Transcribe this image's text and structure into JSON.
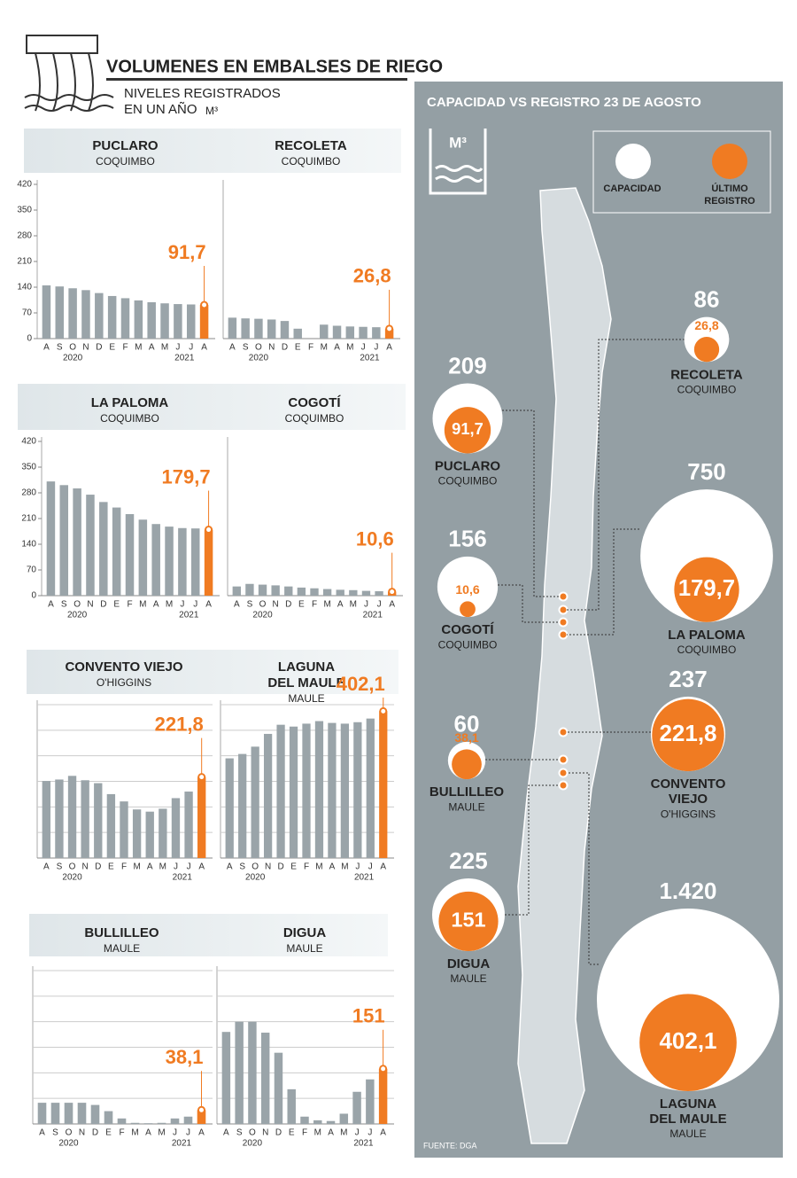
{
  "header": {
    "title": "VOLUMENES EN EMBALSES DE RIEGO",
    "subtitle": [
      "NIVELES REGISTRADOS",
      "EN UN AÑO"
    ],
    "unit": "M³"
  },
  "chart_data": [
    {
      "type": "bar",
      "title": "PUCLARO",
      "subtitle": "COQUIMBO",
      "categories": [
        "A",
        "S",
        "O",
        "N",
        "D",
        "E",
        "F",
        "M",
        "A",
        "M",
        "J",
        "J",
        "A"
      ],
      "years": [
        "2020",
        "2021"
      ],
      "values": [
        145,
        142,
        137,
        132,
        124,
        116,
        110,
        104,
        99,
        96,
        94,
        93,
        91.7
      ],
      "value_labels": [
        null,
        null,
        null,
        null,
        null,
        null,
        null,
        null,
        null,
        null,
        null,
        null,
        "91,7"
      ],
      "color": "#9aa4a9",
      "highlight_color": "#f07b22",
      "ylim": [
        0,
        420
      ],
      "yticks": [
        0,
        70,
        140,
        210,
        280,
        350,
        420
      ],
      "grid": false
    },
    {
      "type": "bar",
      "title": "RECOLETA",
      "subtitle": "COQUIMBO",
      "categories": [
        "A",
        "S",
        "O",
        "N",
        "D",
        "E",
        "F",
        "M",
        "A",
        "M",
        "J",
        "J",
        "A"
      ],
      "years": [
        "2020",
        "2021"
      ],
      "values": [
        57,
        55,
        54,
        52,
        48,
        27,
        null,
        38,
        35,
        33,
        32,
        31,
        26.8
      ],
      "value_labels": [
        null,
        null,
        null,
        null,
        null,
        null,
        null,
        null,
        null,
        null,
        null,
        null,
        "26,8"
      ],
      "color": "#9aa4a9",
      "highlight_color": "#f07b22",
      "ylim": [
        0,
        420
      ],
      "grid": false
    },
    {
      "type": "bar",
      "title": "LA PALOMA",
      "subtitle": "COQUIMBO",
      "categories": [
        "A",
        "S",
        "O",
        "N",
        "D",
        "E",
        "F",
        "M",
        "A",
        "M",
        "J",
        "J",
        "A"
      ],
      "years": [
        "2020",
        "2021"
      ],
      "values": [
        311,
        301,
        292,
        275,
        255,
        240,
        222,
        207,
        195,
        188,
        184,
        183,
        179.7
      ],
      "value_labels": [
        null,
        null,
        null,
        null,
        null,
        null,
        null,
        null,
        null,
        null,
        null,
        null,
        "179,7"
      ],
      "color": "#9aa4a9",
      "highlight_color": "#f07b22",
      "ylim": [
        0,
        420
      ],
      "yticks": [
        0,
        70,
        140,
        210,
        280,
        350,
        420
      ],
      "grid": false
    },
    {
      "type": "bar",
      "title": "COGOTÍ",
      "subtitle": "COQUIMBO",
      "categories": [
        "A",
        "S",
        "O",
        "N",
        "D",
        "E",
        "F",
        "M",
        "A",
        "M",
        "J",
        "J",
        "A"
      ],
      "years": [
        "2020",
        "2021"
      ],
      "values": [
        25,
        32,
        30,
        28,
        25,
        22,
        20,
        18,
        16,
        15,
        13,
        12,
        10.6
      ],
      "value_labels": [
        null,
        null,
        null,
        null,
        null,
        null,
        null,
        null,
        null,
        null,
        null,
        null,
        "10,6"
      ],
      "color": "#9aa4a9",
      "highlight_color": "#f07b22",
      "ylim": [
        0,
        420
      ],
      "grid": false
    },
    {
      "type": "bar",
      "title": "CONVENTO VIEJO",
      "subtitle": "O'HIGGINS",
      "categories": [
        "A",
        "S",
        "O",
        "N",
        "D",
        "E",
        "F",
        "M",
        "A",
        "M",
        "J",
        "J",
        "A"
      ],
      "years": [
        "2020",
        "2021"
      ],
      "values": [
        211,
        215,
        225,
        213,
        205,
        175,
        155,
        133,
        127,
        135,
        164,
        182,
        221.8
      ],
      "value_labels": [
        null,
        null,
        null,
        null,
        null,
        null,
        null,
        null,
        null,
        null,
        null,
        null,
        "221,8"
      ],
      "color": "#9aa4a9",
      "highlight_color": "#f07b22",
      "ylim": [
        0,
        420
      ],
      "yticks": [
        0,
        70,
        140,
        210,
        280,
        350,
        420
      ],
      "tick_labels": false,
      "grid": true
    },
    {
      "type": "bar",
      "title": [
        "LAGUNA",
        "DEL MAULE"
      ],
      "subtitle": "MAULE",
      "categories": [
        "A",
        "S",
        "O",
        "N",
        "D",
        "E",
        "F",
        "M",
        "A",
        "M",
        "J",
        "J",
        "A"
      ],
      "years": [
        "2020",
        "2021"
      ],
      "values": [
        273,
        285,
        305,
        340,
        365,
        360,
        368,
        375,
        370,
        368,
        372,
        382,
        402.1
      ],
      "value_labels": [
        null,
        null,
        null,
        null,
        null,
        null,
        null,
        null,
        null,
        null,
        null,
        null,
        "402,1"
      ],
      "color": "#9aa4a9",
      "highlight_color": "#f07b22",
      "ylim": [
        0,
        420
      ],
      "yticks": [
        0,
        70,
        140,
        210,
        280,
        350,
        420
      ],
      "tick_labels": false,
      "grid": true
    },
    {
      "type": "bar",
      "title": "BULLILLEO",
      "subtitle": "MAULE",
      "categories": [
        "A",
        "S",
        "O",
        "N",
        "D",
        "E",
        "F",
        "M",
        "A",
        "M",
        "J",
        "J",
        "A"
      ],
      "years": [
        "2020",
        "2021"
      ],
      "values": [
        58,
        58,
        58,
        58,
        52,
        35,
        15,
        3,
        2,
        3,
        15,
        20,
        38.1
      ],
      "value_labels": [
        null,
        null,
        null,
        null,
        null,
        null,
        null,
        null,
        null,
        null,
        null,
        null,
        "38,1"
      ],
      "color": "#9aa4a9",
      "highlight_color": "#f07b22",
      "ylim": [
        0,
        420
      ],
      "yticks": [
        0,
        70,
        140,
        210,
        280,
        350,
        420
      ],
      "tick_labels": false,
      "grid": true
    },
    {
      "type": "bar",
      "title": "DIGUA",
      "subtitle": "MAULE",
      "categories": [
        "A",
        "S",
        "O",
        "N",
        "D",
        "E",
        "F",
        "M",
        "A",
        "M",
        "J",
        "J",
        "A"
      ],
      "years": [
        "2020",
        "2021"
      ],
      "values": [
        252,
        280,
        280,
        250,
        195,
        95,
        20,
        10,
        8,
        28,
        88,
        122,
        151
      ],
      "value_labels": [
        null,
        null,
        null,
        null,
        null,
        null,
        null,
        null,
        null,
        null,
        null,
        null,
        "151"
      ],
      "color": "#9aa4a9",
      "highlight_color": "#f07b22",
      "ylim": [
        0,
        420
      ],
      "yticks": [
        0,
        70,
        140,
        210,
        280,
        350,
        420
      ],
      "tick_labels": false,
      "grid": true
    }
  ],
  "map_panel": {
    "title": "CAPACIDAD VS  REGISTRO 23 DE AGOSTO",
    "unit": "M³",
    "legend": {
      "capacity": "CAPACIDAD",
      "record": [
        "ÚLTIMO",
        "REGISTRO"
      ]
    },
    "source": "FUENTE: DGA",
    "capacity_color": "#ffffff",
    "record_color": "#f07b22",
    "bubbles": [
      {
        "name": [
          "RECOLETA"
        ],
        "region": "COQUIMBO",
        "capacity": 86,
        "record": 26.8,
        "record_label": "26,8"
      },
      {
        "name": [
          "PUCLARO"
        ],
        "region": "COQUIMBO",
        "capacity": 209,
        "record": 91.7,
        "record_label": "91,7"
      },
      {
        "name": [
          "LA PALOMA"
        ],
        "region": "COQUIMBO",
        "capacity": 750,
        "record": 179.7,
        "record_label": "179,7"
      },
      {
        "name": [
          "COGOTÍ"
        ],
        "region": "COQUIMBO",
        "capacity": 156,
        "record": 10.6,
        "record_label": "10,6"
      },
      {
        "name": [
          "CONVENTO",
          "VIEJO"
        ],
        "region": "O'HIGGINS",
        "capacity": 237,
        "record": 221.8,
        "record_label": "221,8"
      },
      {
        "name": [
          "BULLILLEO"
        ],
        "region": "MAULE",
        "capacity": 60,
        "record": 38.1,
        "record_label": "38,1"
      },
      {
        "name": [
          "DIGUA"
        ],
        "region": "MAULE",
        "capacity": 225,
        "record": 151
      },
      {
        "name": [
          "LAGUNA",
          "DEL MAULE"
        ],
        "region": "MAULE",
        "capacity": 1420,
        "capacity_label": "1.420",
        "record": 402.1,
        "record_label": "402,1"
      }
    ]
  }
}
